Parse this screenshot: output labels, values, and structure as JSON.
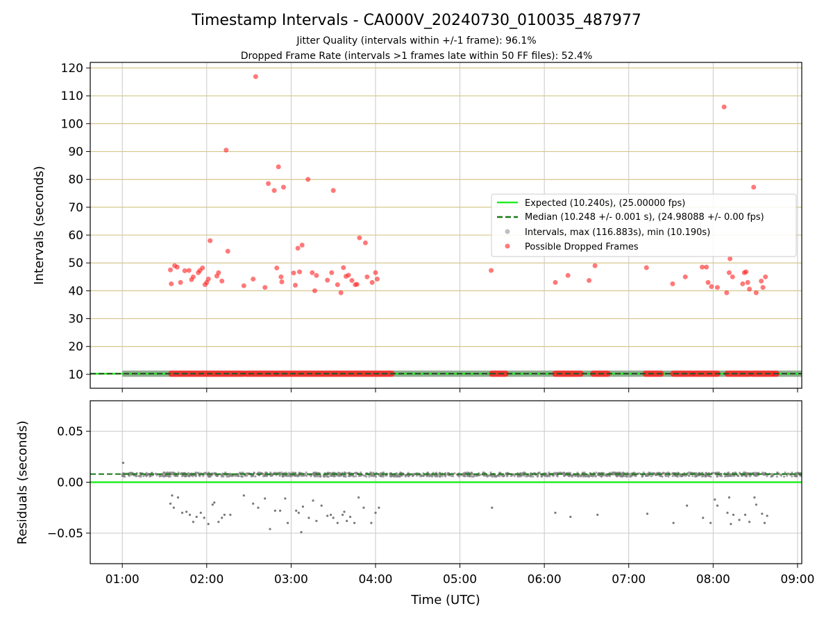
{
  "chart_data": [
    {
      "type": "scatter",
      "title": "Timestamp Intervals - CA000V_20240730_010035_487977",
      "subtitle_lines": [
        "Jitter Quality (intervals within +/-1 frame): 96.1%",
        "Dropped Frame Rate (intervals >1 frames late within 50 FF files): 52.4%"
      ],
      "ylabel": "Intervals (seconds)",
      "ylim": [
        5,
        122
      ],
      "yticks": [
        10,
        20,
        30,
        40,
        50,
        60,
        70,
        80,
        90,
        100,
        110,
        120
      ],
      "xlim_hours": [
        0.62,
        9.05
      ],
      "horizontal_grid_color": "#d4c68a",
      "vertical_grid_color": "#c8c8c8",
      "legend": {
        "placement": "center-right",
        "entries": [
          "Expected (10.240s), (25.00000 fps)",
          "Median (10.248 +/- 0.001 s), (24.98088 +/- 0.00 fps)",
          "Intervals, max (116.883s), min (10.190s)",
          "Possible Dropped Frames"
        ]
      },
      "expected_value": 10.24,
      "median_value": 10.248,
      "expected_color": "#22ee22",
      "median_color": "#157a15",
      "interval_color": "#808080",
      "dropped_color": "#ff2020",
      "dropped_points": [
        [
          1.57,
          47.5
        ],
        [
          1.58,
          42.5
        ],
        [
          1.62,
          49.0
        ],
        [
          1.65,
          48.5
        ],
        [
          1.69,
          43.0
        ],
        [
          1.74,
          47.2
        ],
        [
          1.79,
          47.3
        ],
        [
          1.82,
          44.0
        ],
        [
          1.84,
          45.0
        ],
        [
          1.9,
          46.5
        ],
        [
          1.92,
          47.3
        ],
        [
          1.95,
          48.2
        ],
        [
          1.98,
          42.2
        ],
        [
          2.0,
          43.0
        ],
        [
          2.02,
          44.2
        ],
        [
          2.04,
          58.0
        ],
        [
          2.12,
          45.3
        ],
        [
          2.14,
          46.5
        ],
        [
          2.18,
          43.5
        ],
        [
          2.23,
          90.5
        ],
        [
          2.25,
          54.2
        ],
        [
          2.44,
          41.8
        ],
        [
          2.55,
          44.2
        ],
        [
          2.58,
          116.9
        ],
        [
          2.69,
          41.2
        ],
        [
          2.73,
          78.5
        ],
        [
          2.8,
          76.0
        ],
        [
          2.83,
          48.2
        ],
        [
          2.85,
          84.5
        ],
        [
          2.88,
          45.0
        ],
        [
          2.89,
          43.2
        ],
        [
          2.91,
          77.2
        ],
        [
          3.03,
          46.4
        ],
        [
          3.05,
          42.0
        ],
        [
          3.08,
          55.3
        ],
        [
          3.1,
          46.8
        ],
        [
          3.13,
          56.4
        ],
        [
          3.2,
          80.0
        ],
        [
          3.25,
          46.5
        ],
        [
          3.28,
          40.0
        ],
        [
          3.3,
          45.5
        ],
        [
          3.43,
          43.8
        ],
        [
          3.48,
          46.5
        ],
        [
          3.5,
          76.0
        ],
        [
          3.55,
          42.2
        ],
        [
          3.59,
          39.3
        ],
        [
          3.62,
          48.3
        ],
        [
          3.65,
          45.2
        ],
        [
          3.68,
          45.6
        ],
        [
          3.72,
          43.7
        ],
        [
          3.76,
          42.2
        ],
        [
          3.78,
          42.3
        ],
        [
          3.81,
          59.0
        ],
        [
          3.88,
          57.2
        ],
        [
          3.9,
          45.0
        ],
        [
          3.96,
          43.0
        ],
        [
          4.0,
          46.5
        ],
        [
          4.02,
          44.2
        ],
        [
          5.37,
          47.3
        ],
        [
          6.13,
          43.0
        ],
        [
          6.28,
          45.5
        ],
        [
          6.53,
          43.7
        ],
        [
          6.6,
          49.0
        ],
        [
          7.21,
          48.3
        ],
        [
          7.52,
          42.5
        ],
        [
          7.67,
          45.0
        ],
        [
          7.87,
          48.5
        ],
        [
          7.92,
          48.5
        ],
        [
          7.94,
          43.0
        ],
        [
          7.98,
          41.5
        ],
        [
          8.05,
          41.2
        ],
        [
          8.13,
          106.0
        ],
        [
          8.16,
          39.3
        ],
        [
          8.19,
          46.5
        ],
        [
          8.2,
          51.5
        ],
        [
          8.23,
          45.0
        ],
        [
          8.35,
          42.5
        ],
        [
          8.37,
          46.5
        ],
        [
          8.39,
          46.8
        ],
        [
          8.41,
          43.0
        ],
        [
          8.43,
          40.6
        ],
        [
          8.48,
          77.2
        ],
        [
          8.51,
          39.3
        ],
        [
          8.57,
          43.5
        ],
        [
          8.59,
          41.2
        ],
        [
          8.62,
          45.0
        ]
      ],
      "dropped_band_segments": [
        [
          1.58,
          2.43
        ],
        [
          2.47,
          2.81
        ],
        [
          2.84,
          4.19
        ],
        [
          5.38,
          5.54
        ],
        [
          6.13,
          6.43
        ],
        [
          6.58,
          6.75
        ],
        [
          7.2,
          7.38
        ],
        [
          7.53,
          7.75
        ],
        [
          7.78,
          8.05
        ],
        [
          8.17,
          8.43
        ],
        [
          8.47,
          8.7
        ],
        [
          8.73,
          8.75
        ]
      ]
    },
    {
      "type": "scatter",
      "ylabel": "Residuals (seconds)",
      "xlabel": "Time (UTC)",
      "ylim": [
        -0.08,
        0.08
      ],
      "yticks": [
        0.05,
        0.0,
        -0.05
      ],
      "ytick_labels": [
        "0.05",
        "0.00",
        "−0.05"
      ],
      "xlim_hours": [
        0.62,
        9.05
      ],
      "xticks_hours": [
        1,
        2,
        3,
        4,
        5,
        6,
        7,
        8,
        9
      ],
      "xtick_labels": [
        "01:00",
        "02:00",
        "03:00",
        "04:00",
        "05:00",
        "06:00",
        "07:00",
        "08:00",
        "09:00"
      ],
      "expected_residual": 0.0,
      "median_residual": 0.008,
      "band_range_hours": [
        1.0,
        9.05
      ],
      "band_center": 0.0075,
      "band_halfwidth": 0.002,
      "outlier_points": [
        [
          1.01,
          0.019
        ],
        [
          1.57,
          -0.021
        ],
        [
          1.59,
          -0.013
        ],
        [
          1.61,
          -0.025
        ],
        [
          1.66,
          -0.015
        ],
        [
          1.71,
          -0.03
        ],
        [
          1.76,
          -0.029
        ],
        [
          1.8,
          -0.032
        ],
        [
          1.84,
          -0.039
        ],
        [
          1.88,
          -0.034
        ],
        [
          1.93,
          -0.03
        ],
        [
          1.97,
          -0.035
        ],
        [
          2.02,
          -0.041
        ],
        [
          2.07,
          -0.022
        ],
        [
          2.09,
          -0.02
        ],
        [
          2.14,
          -0.039
        ],
        [
          2.18,
          -0.035
        ],
        [
          2.21,
          -0.032
        ],
        [
          2.28,
          -0.032
        ],
        [
          2.44,
          -0.013
        ],
        [
          2.55,
          -0.021
        ],
        [
          2.61,
          -0.025
        ],
        [
          2.69,
          -0.016
        ],
        [
          2.75,
          -0.046
        ],
        [
          2.81,
          -0.028
        ],
        [
          2.87,
          -0.028
        ],
        [
          2.93,
          -0.016
        ],
        [
          2.96,
          -0.04
        ],
        [
          3.06,
          -0.028
        ],
        [
          3.09,
          -0.03
        ],
        [
          3.12,
          -0.049
        ],
        [
          3.14,
          -0.024
        ],
        [
          3.21,
          -0.035
        ],
        [
          3.26,
          -0.018
        ],
        [
          3.3,
          -0.038
        ],
        [
          3.36,
          -0.023
        ],
        [
          3.43,
          -0.033
        ],
        [
          3.47,
          -0.032
        ],
        [
          3.5,
          -0.035
        ],
        [
          3.55,
          -0.04
        ],
        [
          3.61,
          -0.032
        ],
        [
          3.63,
          -0.029
        ],
        [
          3.66,
          -0.038
        ],
        [
          3.7,
          -0.034
        ],
        [
          3.75,
          -0.04
        ],
        [
          3.8,
          -0.015
        ],
        [
          3.86,
          -0.025
        ],
        [
          3.95,
          -0.04
        ],
        [
          4.0,
          -0.03
        ],
        [
          4.04,
          -0.025
        ],
        [
          5.38,
          -0.025
        ],
        [
          6.13,
          -0.03
        ],
        [
          6.31,
          -0.034
        ],
        [
          6.63,
          -0.032
        ],
        [
          7.22,
          -0.031
        ],
        [
          7.53,
          -0.04
        ],
        [
          7.69,
          -0.023
        ],
        [
          7.88,
          -0.035
        ],
        [
          7.97,
          -0.04
        ],
        [
          8.02,
          -0.017
        ],
        [
          8.05,
          -0.023
        ],
        [
          8.17,
          -0.03
        ],
        [
          8.19,
          -0.015
        ],
        [
          8.21,
          -0.041
        ],
        [
          8.24,
          -0.032
        ],
        [
          8.31,
          -0.037
        ],
        [
          8.38,
          -0.032
        ],
        [
          8.43,
          -0.039
        ],
        [
          8.49,
          -0.015
        ],
        [
          8.51,
          -0.022
        ],
        [
          8.58,
          -0.031
        ],
        [
          8.61,
          -0.04
        ],
        [
          8.64,
          -0.033
        ]
      ]
    }
  ]
}
